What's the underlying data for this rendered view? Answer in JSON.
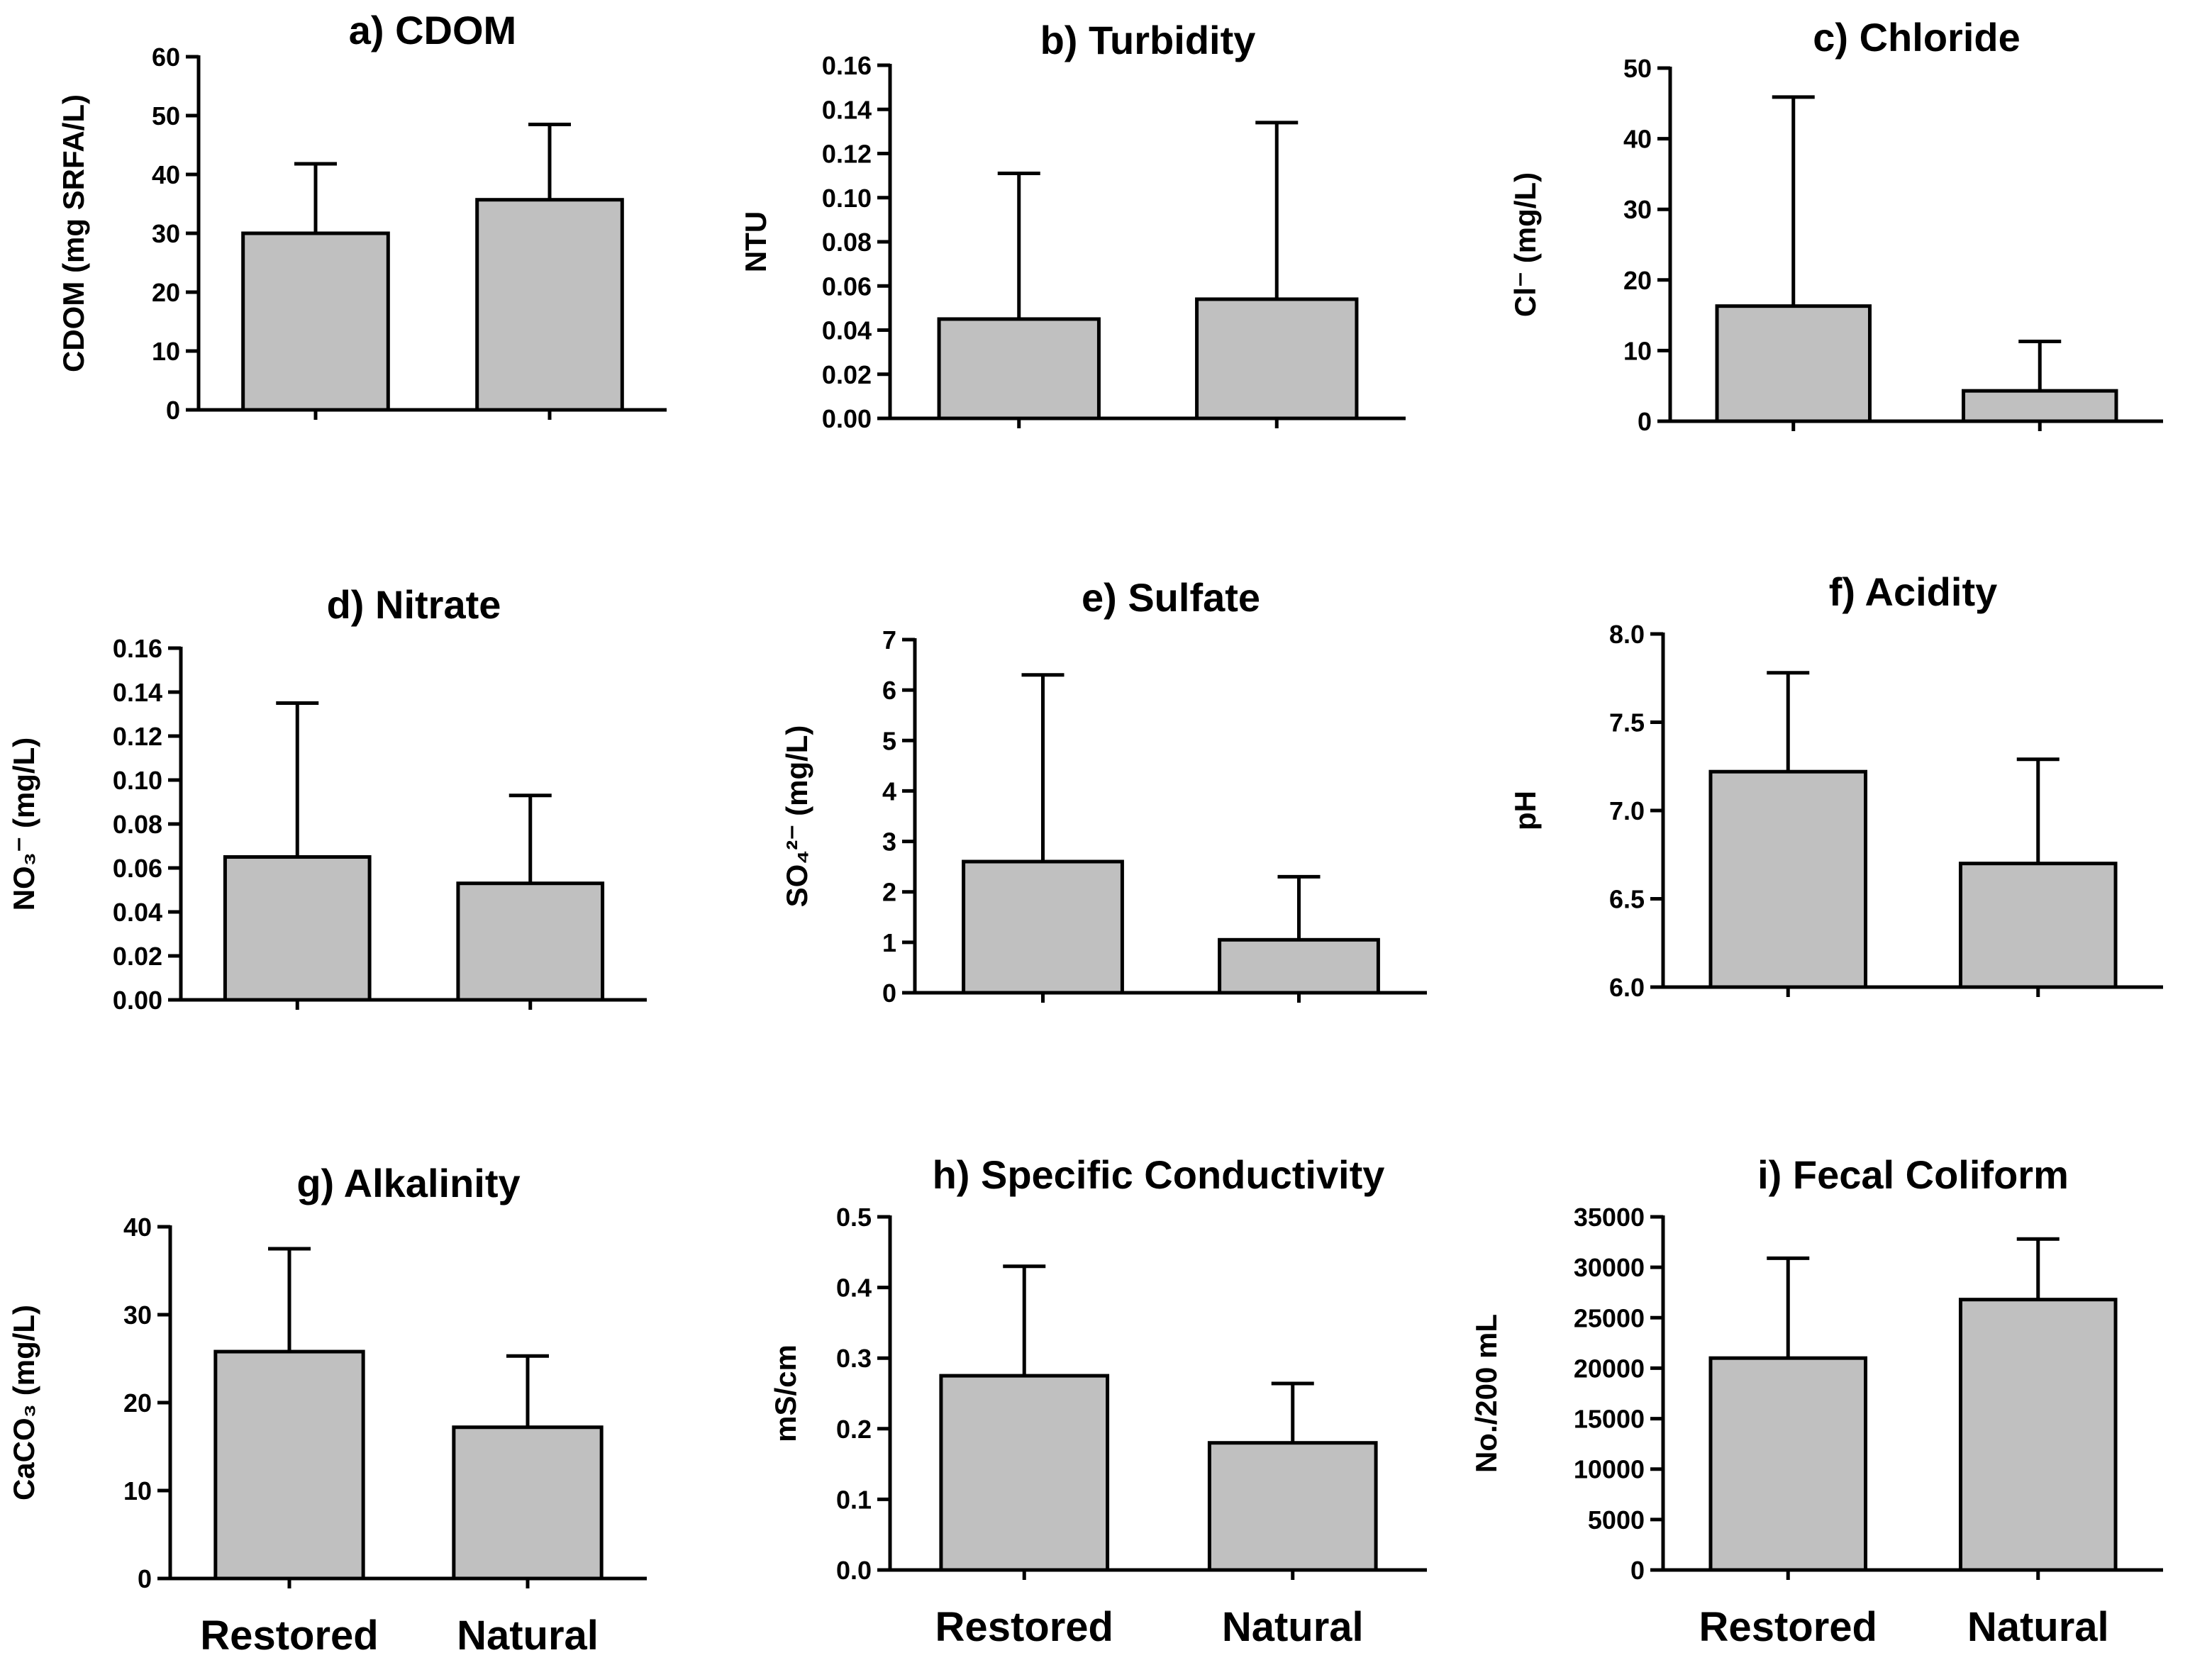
{
  "chart_data": [
    {
      "type": "bar",
      "title": "a) CDOM",
      "ylabel": "CDOM (mg SRFA/L)",
      "ylim": [
        0,
        60
      ],
      "yticks": [
        "0",
        "10",
        "20",
        "30",
        "40",
        "50",
        "60"
      ],
      "categories": [
        "Restored",
        "Natural"
      ],
      "show_category_labels": false,
      "values": [
        30,
        35.7
      ],
      "error_upper": [
        41.8,
        48.5
      ]
    },
    {
      "type": "bar",
      "title": "b) Turbidity",
      "ylabel": "NTU",
      "ylim": [
        0,
        0.16
      ],
      "yticks": [
        "0.00",
        "0.02",
        "0.04",
        "0.06",
        "0.08",
        "0.10",
        "0.12",
        "0.14",
        "0.16"
      ],
      "categories": [
        "Restored",
        "Natural"
      ],
      "show_category_labels": false,
      "values": [
        0.045,
        0.054
      ],
      "error_upper": [
        0.111,
        0.134
      ]
    },
    {
      "type": "bar",
      "title": "c) Chloride",
      "ylabel": "Cl⁻ (mg/L)",
      "ylim": [
        0,
        50
      ],
      "yticks": [
        "0",
        "10",
        "20",
        "30",
        "40",
        "50"
      ],
      "categories": [
        "Restored",
        "Natural"
      ],
      "show_category_labels": false,
      "values": [
        16.3,
        4.3
      ],
      "error_upper": [
        45.9,
        11.3
      ]
    },
    {
      "type": "bar",
      "title": "d) Nitrate",
      "ylabel": "NO₃⁻ (mg/L)",
      "ylim": [
        0,
        0.16
      ],
      "yticks": [
        "0.00",
        "0.02",
        "0.04",
        "0.06",
        "0.08",
        "0.10",
        "0.12",
        "0.14",
        "0.16"
      ],
      "categories": [
        "Restored",
        "Natural"
      ],
      "show_category_labels": false,
      "values": [
        0.065,
        0.053
      ],
      "error_upper": [
        0.135,
        0.093
      ]
    },
    {
      "type": "bar",
      "title": "e) Sulfate",
      "ylabel": "SO₄²⁻ (mg/L)",
      "ylim": [
        0,
        7
      ],
      "yticks": [
        "0",
        "1",
        "2",
        "3",
        "4",
        "5",
        "6",
        "7"
      ],
      "categories": [
        "Restored",
        "Natural"
      ],
      "show_category_labels": false,
      "values": [
        2.6,
        1.05
      ],
      "error_upper": [
        6.3,
        2.3
      ]
    },
    {
      "type": "bar",
      "title": "f) Acidity",
      "ylabel": "pH",
      "ylim": [
        6.0,
        8.0
      ],
      "yticks": [
        "6.0",
        "6.5",
        "7.0",
        "7.5",
        "8.0"
      ],
      "categories": [
        "Restored",
        "Natural"
      ],
      "show_category_labels": false,
      "values": [
        7.22,
        6.7
      ],
      "error_upper": [
        7.78,
        7.29
      ]
    },
    {
      "type": "bar",
      "title": "g) Alkalinity",
      "ylabel": "CaCO₃ (mg/L)",
      "ylim": [
        0,
        40
      ],
      "yticks": [
        "0",
        "10",
        "20",
        "30",
        "40"
      ],
      "categories": [
        "Restored",
        "Natural"
      ],
      "show_category_labels": true,
      "values": [
        25.8,
        17.2
      ],
      "error_upper": [
        37.5,
        25.3
      ]
    },
    {
      "type": "bar",
      "title": "h) Specific Conductivity",
      "ylabel": "mS/cm",
      "ylim": [
        0,
        0.5
      ],
      "yticks": [
        "0.0",
        "0.1",
        "0.2",
        "0.3",
        "0.4",
        "0.5"
      ],
      "categories": [
        "Restored",
        "Natural"
      ],
      "show_category_labels": true,
      "values": [
        0.275,
        0.18
      ],
      "error_upper": [
        0.43,
        0.264
      ]
    },
    {
      "type": "bar",
      "title": "i) Fecal Coliform",
      "ylabel": "No./200 mL",
      "ylim": [
        0,
        35000
      ],
      "yticks": [
        "0",
        "5000",
        "10000",
        "15000",
        "20000",
        "25000",
        "30000",
        "35000"
      ],
      "categories": [
        "Restored",
        "Natural"
      ],
      "show_category_labels": true,
      "values": [
        21000,
        26800
      ],
      "error_upper": [
        30900,
        32800
      ]
    }
  ]
}
